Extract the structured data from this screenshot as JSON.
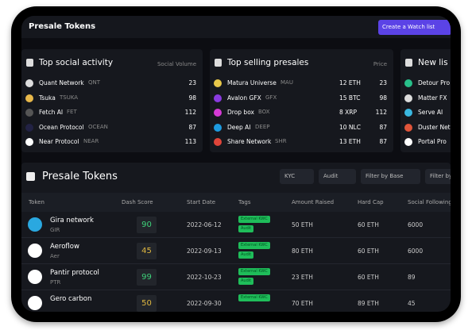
{
  "header": {
    "title": "Presale Tokens",
    "button": "Create a Watch list"
  },
  "cards": [
    {
      "title": "Top social activity",
      "column": "Social Volume",
      "rows": [
        {
          "name": "Quant Network",
          "symbol": "QNT",
          "value": 23
        },
        {
          "name": "Tsuka",
          "symbol": "TSUKA",
          "value": 98
        },
        {
          "name": "Fetch AI",
          "symbol": "FET",
          "value": 112
        },
        {
          "name": "Ocean Protocol",
          "symbol": "OCEAN",
          "value": 87
        },
        {
          "name": "Near Protocol",
          "symbol": "NEAR",
          "value": 113
        }
      ]
    },
    {
      "title": "Top selling presales",
      "column": "Price",
      "rows": [
        {
          "name": "Matura Universe",
          "symbol": "MAU",
          "price": "12 ETH",
          "value": 23
        },
        {
          "name": "Avalon GFX",
          "symbol": "GFX",
          "price": "15 BTC",
          "value": 98
        },
        {
          "name": "Drop box",
          "symbol": "BOX",
          "price": "8 XRP",
          "value": 112
        },
        {
          "name": "Deep AI",
          "symbol": "DEEP",
          "price": "10 NLC",
          "value": 87
        },
        {
          "name": "Share Network",
          "symbol": "SHR",
          "price": "13 ETH",
          "value": 87
        }
      ]
    },
    {
      "title": "New lis",
      "rows": [
        {
          "name": "Detour Pro"
        },
        {
          "name": "Matter FX"
        },
        {
          "name": "Serve AI"
        },
        {
          "name": "Duster Net"
        },
        {
          "name": "Portal Pro"
        }
      ]
    }
  ],
  "table": {
    "title": "Presale Tokens",
    "filters": [
      "KYC",
      "Audit",
      "Filter by Base",
      "Filter by"
    ],
    "columns": [
      "Token",
      "Dash Score",
      "Start Date",
      "Tags",
      "Amount Raised",
      "Hard Cap",
      "Social Following"
    ],
    "rows": [
      {
        "name": "Gira network",
        "symbol": "GIR",
        "score": 90,
        "start_date": "2022-06-12",
        "tags": [
          "External KWC",
          "Audit"
        ],
        "amount_raised": "50 ETH",
        "hard_cap": "60 ETH",
        "social_following": 6000
      },
      {
        "name": "Aeroflow",
        "symbol": "Aer",
        "score": 45,
        "start_date": "2022-09-13",
        "tags": [
          "External KWC",
          "Audit"
        ],
        "amount_raised": "80 ETH",
        "hard_cap": "60 ETH",
        "social_following": 6000
      },
      {
        "name": "Pantir protocol",
        "symbol": "PTR",
        "score": 99,
        "start_date": "2022-10-23",
        "tags": [
          "External KWC",
          "Audit"
        ],
        "amount_raised": "23 ETH",
        "hard_cap": "60 ETH",
        "social_following": 89
      },
      {
        "name": "Gero carbon",
        "score": 50,
        "start_date": "2022-09-30",
        "tags": [
          "External KWC"
        ],
        "amount_raised": "70 ETH",
        "hard_cap": "89 ETH",
        "social_following": 45
      }
    ]
  }
}
